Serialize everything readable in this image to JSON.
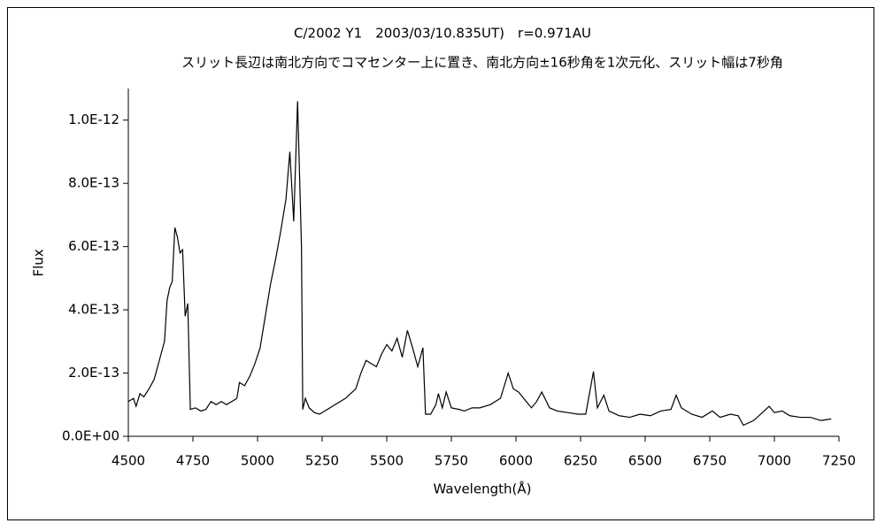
{
  "chart_data": {
    "type": "line",
    "title": "C/2002 Y1　2003/03/10.835UT)　r=0.971AU",
    "subtitle": "スリット長辺は南北方向でコマセンター上に置き、南北方向±16秒角を1次元化、スリット幅は7秒角",
    "x_label": "Wavelength(Å)",
    "y_label": "Flux",
    "color": "#000000",
    "grid": false,
    "xlim": [
      4500,
      7250
    ],
    "xticks": [
      4500,
      4750,
      5000,
      5250,
      5500,
      5750,
      6000,
      6250,
      6500,
      6750,
      7000,
      7250
    ],
    "ylim": [
      0,
      1.1e-12
    ],
    "yticks": [
      {
        "value": 0,
        "label": "0.0E+00"
      },
      {
        "value": 2e-13,
        "label": "2.0E-13"
      },
      {
        "value": 4e-13,
        "label": "4.0E-13"
      },
      {
        "value": 6e-13,
        "label": "6.0E-13"
      },
      {
        "value": 8e-13,
        "label": "8.0E-13"
      },
      {
        "value": 1e-12,
        "label": "1.0E-12"
      }
    ],
    "x": [
      4500,
      4520,
      4530,
      4545,
      4560,
      4580,
      4600,
      4620,
      4640,
      4650,
      4660,
      4670,
      4680,
      4690,
      4700,
      4710,
      4720,
      4730,
      4740,
      4760,
      4780,
      4800,
      4820,
      4840,
      4860,
      4880,
      4900,
      4920,
      4930,
      4950,
      4970,
      4990,
      5010,
      5030,
      5050,
      5070,
      5090,
      5110,
      5125,
      5140,
      5155,
      5170,
      5175,
      5185,
      5200,
      5220,
      5240,
      5260,
      5280,
      5300,
      5320,
      5340,
      5360,
      5380,
      5400,
      5420,
      5440,
      5460,
      5480,
      5500,
      5520,
      5540,
      5560,
      5580,
      5600,
      5620,
      5640,
      5650,
      5670,
      5690,
      5700,
      5715,
      5730,
      5750,
      5780,
      5800,
      5830,
      5860,
      5900,
      5940,
      5970,
      5990,
      6010,
      6040,
      6060,
      6080,
      6100,
      6130,
      6160,
      6200,
      6240,
      6270,
      6300,
      6315,
      6340,
      6360,
      6400,
      6440,
      6480,
      6520,
      6560,
      6600,
      6620,
      6640,
      6680,
      6720,
      6760,
      6790,
      6830,
      6860,
      6880,
      6920,
      6960,
      6980,
      7000,
      7030,
      7060,
      7100,
      7140,
      7180,
      7220
    ],
    "values": [
      1.1e-13,
      1.2e-13,
      9.5e-14,
      1.35e-13,
      1.25e-13,
      1.5e-13,
      1.8e-13,
      2.4e-13,
      3e-13,
      4.3e-13,
      4.7e-13,
      4.9e-13,
      6.6e-13,
      6.3e-13,
      5.8e-13,
      5.9e-13,
      3.8e-13,
      4.2e-13,
      8.5e-14,
      9e-14,
      8e-14,
      8.5e-14,
      1.1e-13,
      1e-13,
      1.1e-13,
      1e-13,
      1.1e-13,
      1.2e-13,
      1.7e-13,
      1.6e-13,
      1.9e-13,
      2.3e-13,
      2.8e-13,
      3.8e-13,
      4.8e-13,
      5.6e-13,
      6.5e-13,
      7.5e-13,
      9e-13,
      6.8e-13,
      1.06e-12,
      6e-13,
      8.5e-14,
      1.2e-13,
      9e-14,
      7.5e-14,
      7e-14,
      8e-14,
      9e-14,
      1e-13,
      1.1e-13,
      1.2e-13,
      1.35e-13,
      1.5e-13,
      2e-13,
      2.4e-13,
      2.3e-13,
      2.2e-13,
      2.6e-13,
      2.9e-13,
      2.7e-13,
      3.1e-13,
      2.5e-13,
      3.35e-13,
      2.8e-13,
      2.2e-13,
      2.8e-13,
      7e-14,
      7e-14,
      1e-13,
      1.35e-13,
      9e-14,
      1.4e-13,
      9e-14,
      8.5e-14,
      8e-14,
      9e-14,
      9e-14,
      1e-13,
      1.2e-13,
      2e-13,
      1.5e-13,
      1.4e-13,
      1.1e-13,
      9e-14,
      1.1e-13,
      1.4e-13,
      9e-14,
      8e-14,
      7.5e-14,
      7e-14,
      7e-14,
      2.05e-13,
      9e-14,
      1.3e-13,
      8e-14,
      6.5e-14,
      6e-14,
      7e-14,
      6.5e-14,
      8e-14,
      8.5e-14,
      1.3e-13,
      9e-14,
      7e-14,
      6e-14,
      8e-14,
      6e-14,
      7e-14,
      6.5e-14,
      3.5e-14,
      5e-14,
      8e-14,
      9.5e-14,
      7.5e-14,
      8e-14,
      6.5e-14,
      6e-14,
      6e-14,
      5e-14,
      5.5e-14
    ]
  }
}
